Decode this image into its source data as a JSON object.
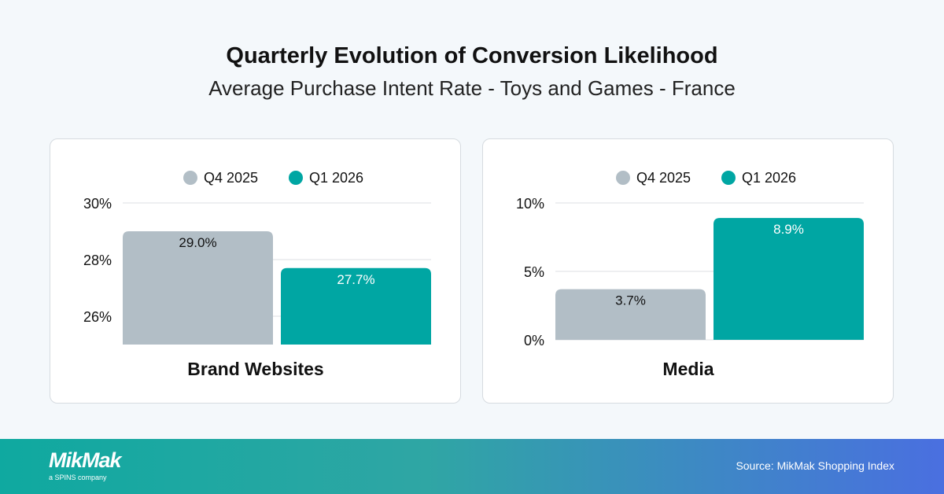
{
  "title": "Quarterly Evolution of Conversion Likelihood",
  "subtitle": "Average Purchase Intent Rate - Toys and Games - France",
  "colors": {
    "q4": "#b2bec6",
    "q1": "#00a6a3"
  },
  "chart_data": [
    {
      "type": "bar",
      "title": "Brand Websites",
      "categories": [
        "Brand Websites"
      ],
      "series": [
        {
          "name": "Q4 2025",
          "values": [
            29.0
          ],
          "label": "29.0%"
        },
        {
          "name": "Q1 2026",
          "values": [
            27.7
          ],
          "label": "27.7%"
        }
      ],
      "ylim": [
        25,
        30
      ],
      "yticks": [
        26,
        28,
        30
      ],
      "ytick_labels": [
        "26%",
        "28%",
        "30%"
      ],
      "grid": true,
      "legend": "top"
    },
    {
      "type": "bar",
      "title": "Media",
      "categories": [
        "Media"
      ],
      "series": [
        {
          "name": "Q4 2025",
          "values": [
            3.7
          ],
          "label": "3.7%"
        },
        {
          "name": "Q1 2026",
          "values": [
            8.9
          ],
          "label": "8.9%"
        }
      ],
      "ylim": [
        0,
        10
      ],
      "yticks": [
        0,
        5,
        10
      ],
      "ytick_labels": [
        "0%",
        "5%",
        "10%"
      ],
      "grid": true,
      "legend": "top"
    }
  ],
  "footer": {
    "logo": "MikMak",
    "logo_sub": "a SPINS company",
    "source": "Source: MikMak Shopping Index"
  }
}
